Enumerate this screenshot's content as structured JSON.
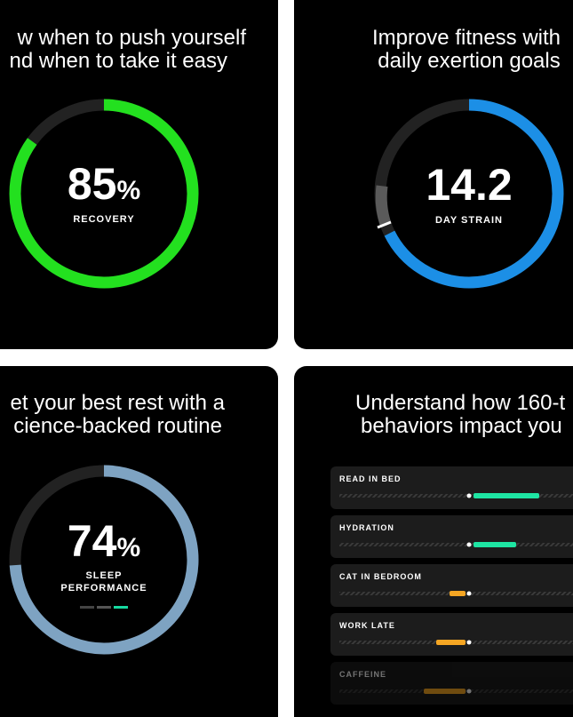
{
  "cards": [
    {
      "title": [
        "w when to push yourself",
        "nd when to take it easy"
      ],
      "metric": {
        "value": 85,
        "unit": "%",
        "labels": [
          "RECOVERY"
        ]
      }
    },
    {
      "title": [
        "Improve fitness with",
        "daily exertion goals"
      ],
      "metric": {
        "value": 14.2,
        "labels": [
          "DAY STRAIN"
        ]
      }
    },
    {
      "title": [
        "et your best rest with a",
        "cience-backed routine"
      ],
      "metric": {
        "value": 74,
        "unit": "%",
        "labels": [
          "SLEEP",
          "PERFORMANCE"
        ]
      }
    },
    {
      "title": [
        "Understand how 160-t",
        "behaviors impact you"
      ],
      "rows": [
        "READ IN BED",
        "HYDRATION",
        "CAT IN BEDROOM",
        "WORK LATE",
        "CAFFEINE"
      ]
    }
  ]
}
